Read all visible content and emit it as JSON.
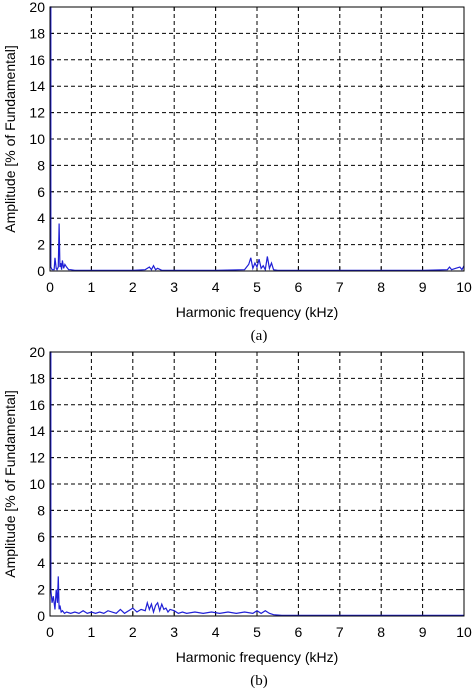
{
  "chart_data": [
    {
      "type": "line",
      "caption": "(a)",
      "xlabel": "Harmonic frequency (kHz)",
      "ylabel": "Amplitude [% of Fundamental]",
      "xlim": [
        0,
        10
      ],
      "ylim": [
        0,
        20
      ],
      "xticks": [
        0,
        1,
        2,
        3,
        4,
        5,
        6,
        7,
        8,
        9,
        10
      ],
      "yticks": [
        0,
        2,
        4,
        6,
        8,
        10,
        12,
        14,
        16,
        18,
        20
      ],
      "grid": true,
      "series_color": "#1f1fd6",
      "series": [
        {
          "x": [
            0,
            0.02,
            0.02,
            0.05,
            0.08,
            0.1,
            0.12,
            0.15,
            0.17,
            0.2,
            0.22,
            0.24,
            0.26,
            0.28,
            0.3,
            0.33,
            0.36,
            0.4,
            0.45,
            0.5,
            0.6,
            0.8,
            1.0,
            1.5,
            2.0,
            2.3,
            2.4,
            2.45,
            2.5,
            2.55,
            2.6,
            2.7,
            3.0,
            4.0,
            4.7,
            4.8,
            4.85,
            4.9,
            4.95,
            5.0,
            5.05,
            5.1,
            5.15,
            5.2,
            5.25,
            5.3,
            5.35,
            5.4,
            5.5,
            6.0,
            7.0,
            8.0,
            9.0,
            9.6,
            9.65,
            9.7,
            9.8,
            9.9,
            9.95,
            10.0
          ],
          "y": [
            20,
            20,
            0.3,
            0.1,
            0.1,
            0.1,
            1.0,
            0.2,
            0.1,
            0.3,
            3.6,
            0.3,
            0.6,
            0.1,
            0.8,
            0.2,
            0.5,
            0.3,
            0.1,
            0.1,
            0.05,
            0.05,
            0.05,
            0.05,
            0.05,
            0.1,
            0.3,
            0.1,
            0.4,
            0.1,
            0.2,
            0.05,
            0.05,
            0.05,
            0.1,
            0.5,
            1.0,
            0.2,
            0.6,
            0.3,
            0.9,
            0.2,
            0.4,
            0.1,
            1.1,
            0.2,
            0.6,
            0.1,
            0.05,
            0.05,
            0.05,
            0.05,
            0.05,
            0.1,
            0.3,
            0.1,
            0.2,
            0.3,
            0.1,
            0.4
          ]
        }
      ]
    },
    {
      "type": "line",
      "caption": "(b)",
      "xlabel": "Harmonic frequency (kHz)",
      "ylabel": "Amplitude [% of Fundamental]",
      "xlim": [
        0,
        10
      ],
      "ylim": [
        0,
        20
      ],
      "xticks": [
        0,
        1,
        2,
        3,
        4,
        5,
        6,
        7,
        8,
        9,
        10
      ],
      "yticks": [
        0,
        2,
        4,
        6,
        8,
        10,
        12,
        14,
        16,
        18,
        20
      ],
      "grid": true,
      "series_color": "#1f1fd6",
      "series": [
        {
          "x": [
            0,
            0.02,
            0.02,
            0.05,
            0.08,
            0.12,
            0.15,
            0.18,
            0.2,
            0.22,
            0.24,
            0.27,
            0.3,
            0.35,
            0.4,
            0.5,
            0.6,
            0.7,
            0.8,
            0.9,
            1.0,
            1.1,
            1.2,
            1.3,
            1.4,
            1.5,
            1.6,
            1.7,
            1.8,
            1.9,
            2.0,
            2.1,
            2.2,
            2.3,
            2.35,
            2.4,
            2.45,
            2.5,
            2.55,
            2.6,
            2.65,
            2.7,
            2.75,
            2.8,
            2.85,
            2.9,
            3.0,
            3.1,
            3.2,
            3.3,
            3.5,
            3.7,
            3.9,
            4.1,
            4.3,
            4.5,
            4.7,
            4.9,
            5.0,
            5.1,
            5.2,
            5.3,
            5.4,
            5.6,
            6.0,
            7.0,
            8.0,
            9.0,
            10.0
          ],
          "y": [
            20,
            20,
            2.0,
            1.0,
            1.5,
            0.5,
            2.0,
            1.0,
            3.0,
            0.5,
            0.8,
            0.3,
            0.4,
            0.2,
            0.3,
            0.2,
            0.3,
            0.2,
            0.4,
            0.2,
            0.3,
            0.2,
            0.3,
            0.2,
            0.4,
            0.3,
            0.2,
            0.5,
            0.2,
            0.4,
            0.6,
            0.3,
            0.5,
            0.4,
            1.0,
            0.5,
            0.9,
            0.3,
            0.8,
            1.0,
            0.4,
            0.9,
            0.5,
            0.6,
            0.3,
            0.5,
            0.4,
            0.2,
            0.3,
            0.2,
            0.3,
            0.2,
            0.3,
            0.2,
            0.3,
            0.2,
            0.3,
            0.2,
            0.4,
            0.2,
            0.4,
            0.2,
            0.1,
            0.05,
            0.05,
            0.05,
            0.05,
            0.05,
            0.05
          ]
        }
      ]
    }
  ]
}
